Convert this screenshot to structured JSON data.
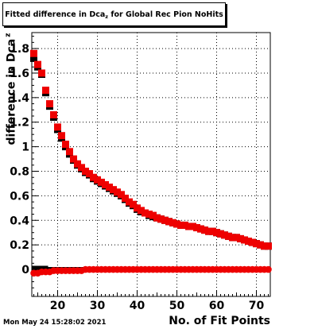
{
  "title": {
    "main": "Fitted difference in Dca",
    "sub": "z",
    "rest": " for Global Rec Pion NoHits"
  },
  "ylabel": {
    "main": "difference in Dca",
    "sub": "z"
  },
  "xlabel": "No. of Fit Points",
  "timestamp": "Mon May 24 15:28:02 2021",
  "colors": {
    "series_red": "#ee0000",
    "series_black": "#000000",
    "grid": "#000000"
  },
  "chart_data": {
    "type": "scatter",
    "xlim": [
      13.5,
      73.5
    ],
    "ylim": [
      -0.22,
      1.93
    ],
    "x_ticks": [
      20,
      30,
      40,
      50,
      60,
      70
    ],
    "y_ticks": [
      0,
      0.2,
      0.4,
      0.6,
      0.8,
      1,
      1.2,
      1.4,
      1.6,
      1.8
    ],
    "x_tick_labels": [
      "20",
      "30",
      "40",
      "50",
      "60",
      "70"
    ],
    "y_tick_labels": [
      "0",
      "0.2",
      "0.4",
      "0.6",
      "0.8",
      "1",
      "1.2",
      "1.4",
      "1.6",
      "1.8"
    ],
    "grid": true,
    "series": [
      {
        "color": "#000000",
        "marker": "square",
        "x": [
          14,
          15,
          16,
          17,
          18,
          19,
          20,
          21,
          22,
          23,
          24,
          25,
          26,
          27,
          28,
          29,
          30,
          31,
          32,
          33,
          34,
          35,
          36,
          37,
          38,
          39,
          40,
          41,
          42,
          43,
          44,
          45,
          46,
          47,
          48,
          49,
          50,
          51,
          52,
          53,
          54,
          55,
          56,
          57,
          58,
          59,
          60,
          61,
          62,
          63,
          64,
          65,
          66,
          67,
          68,
          69,
          70,
          71,
          72,
          73
        ],
        "y": [
          1.72,
          1.65,
          1.59,
          1.44,
          1.33,
          1.24,
          1.14,
          1.07,
          1.0,
          0.94,
          0.89,
          0.85,
          0.82,
          0.79,
          0.77,
          0.74,
          0.72,
          0.7,
          0.68,
          0.66,
          0.64,
          0.62,
          0.6,
          0.57,
          0.54,
          0.52,
          0.49,
          0.47,
          0.46,
          0.44,
          0.43,
          0.42,
          0.41,
          0.4,
          0.39,
          0.38,
          0.37,
          0.36,
          0.36,
          0.35,
          0.35,
          0.34,
          0.33,
          0.32,
          0.31,
          0.31,
          0.3,
          0.29,
          0.28,
          0.27,
          0.26,
          0.26,
          0.25,
          0.24,
          0.23,
          0.22,
          0.21,
          0.2,
          0.19,
          0.19
        ]
      },
      {
        "color": "#000000",
        "marker": "square",
        "x": [
          14,
          15,
          16,
          17,
          18,
          19,
          20,
          21,
          22,
          23,
          24,
          25,
          26,
          27,
          28,
          29,
          30,
          31,
          32,
          33,
          34,
          35,
          36,
          37,
          38,
          39,
          40,
          41,
          42,
          43,
          44,
          45,
          46,
          47,
          48,
          49,
          50,
          51,
          52,
          53,
          54,
          55,
          56,
          57,
          58,
          59,
          60,
          61,
          62,
          63,
          64,
          65,
          66,
          67,
          68,
          69,
          70,
          71,
          72,
          73
        ],
        "y": [
          0.01,
          0.01,
          0.01,
          0.01,
          0.0,
          0.0,
          0.0,
          0.0,
          0.0,
          0.0,
          0.0,
          0.0,
          0.0,
          0.0,
          0.0,
          0.0,
          0.0,
          0.0,
          0.0,
          0.0,
          0.0,
          0.0,
          0.0,
          0.0,
          0.0,
          0.0,
          0.0,
          0.0,
          0.0,
          0.0,
          0.0,
          0.0,
          0.0,
          0.0,
          0.0,
          0.0,
          0.0,
          0.0,
          0.0,
          0.0,
          0.0,
          0.0,
          0.0,
          0.0,
          0.0,
          0.0,
          0.0,
          0.0,
          0.0,
          0.0,
          0.0,
          0.0,
          0.0,
          0.0,
          0.0,
          0.0,
          0.0,
          0.0,
          0.0,
          0.0
        ]
      },
      {
        "color": "#ee0000",
        "marker": "square",
        "x": [
          14,
          15,
          16,
          17,
          18,
          19,
          20,
          21,
          22,
          23,
          24,
          25,
          26,
          27,
          28,
          29,
          30,
          31,
          32,
          33,
          34,
          35,
          36,
          37,
          38,
          39,
          40,
          41,
          42,
          43,
          44,
          45,
          46,
          47,
          48,
          49,
          50,
          51,
          52,
          53,
          54,
          55,
          56,
          57,
          58,
          59,
          60,
          61,
          62,
          63,
          64,
          65,
          66,
          67,
          68,
          69,
          70,
          71,
          72,
          73
        ],
        "y": [
          1.76,
          1.67,
          1.6,
          1.46,
          1.35,
          1.26,
          1.16,
          1.09,
          1.02,
          0.96,
          0.9,
          0.86,
          0.83,
          0.8,
          0.78,
          0.75,
          0.73,
          0.71,
          0.69,
          0.67,
          0.65,
          0.63,
          0.61,
          0.58,
          0.55,
          0.53,
          0.5,
          0.48,
          0.46,
          0.45,
          0.44,
          0.42,
          0.41,
          0.4,
          0.39,
          0.38,
          0.37,
          0.36,
          0.36,
          0.35,
          0.35,
          0.34,
          0.33,
          0.32,
          0.31,
          0.31,
          0.3,
          0.29,
          0.28,
          0.27,
          0.26,
          0.26,
          0.25,
          0.24,
          0.23,
          0.22,
          0.21,
          0.2,
          0.19,
          0.19
        ]
      },
      {
        "color": "#ee0000",
        "marker": "circle",
        "x": [
          14,
          15,
          16,
          17,
          18,
          19,
          20,
          21,
          22,
          23,
          24,
          25,
          26,
          27,
          28,
          29,
          30,
          31,
          32,
          33,
          34,
          35,
          36,
          37,
          38,
          39,
          40,
          41,
          42,
          43,
          44,
          45,
          46,
          47,
          48,
          49,
          50,
          51,
          52,
          53,
          54,
          55,
          56,
          57,
          58,
          59,
          60,
          61,
          62,
          63,
          64,
          65,
          66,
          67,
          68,
          69,
          70,
          71,
          72,
          73
        ],
        "y": [
          -0.03,
          -0.03,
          -0.02,
          -0.02,
          -0.02,
          -0.01,
          -0.01,
          -0.01,
          -0.01,
          -0.01,
          -0.01,
          -0.01,
          -0.01,
          0.0,
          0.0,
          0.0,
          0.0,
          0.0,
          0.0,
          0.0,
          0.0,
          0.0,
          0.0,
          0.0,
          0.0,
          0.0,
          0.0,
          0.0,
          0.0,
          0.0,
          0.0,
          0.0,
          0.0,
          0.0,
          0.0,
          0.0,
          0.0,
          0.0,
          0.0,
          0.0,
          0.0,
          0.0,
          0.0,
          0.0,
          0.0,
          0.0,
          0.0,
          0.0,
          0.0,
          0.0,
          0.0,
          0.0,
          0.0,
          0.0,
          0.0,
          0.0,
          0.0,
          0.0,
          0.0,
          0.0
        ]
      }
    ]
  }
}
